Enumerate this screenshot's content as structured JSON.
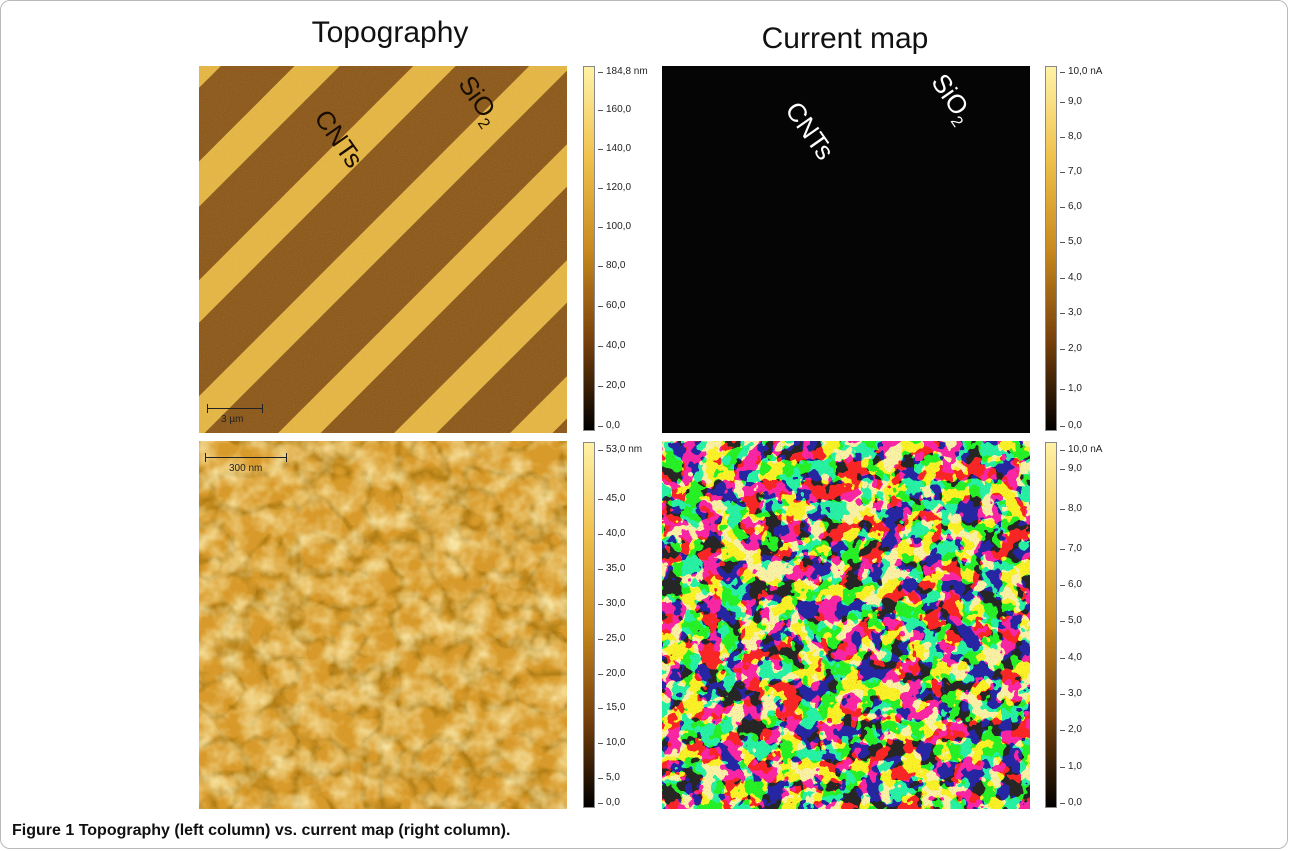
{
  "figure": {
    "titles": {
      "topography": "Topography",
      "current": "Current map"
    },
    "caption": {
      "label": "Figure 1",
      "text": "Topography (left column) vs. current map (right column)."
    },
    "panels": {
      "topo_top": {
        "labels": {
          "cnts": "CNTs",
          "sio": "SiO",
          "sub": "2"
        },
        "scalebar": "3 µm"
      },
      "curr_top": {
        "labels": {
          "cnts": "CNTs",
          "sio": "SiO",
          "sub": "2"
        }
      },
      "topo_bottom": {
        "scalebar": "300 nm"
      }
    },
    "colorbars": {
      "topo_top": [
        "184,8 nm",
        "160,0",
        "140,0",
        "120,0",
        "100,0",
        "80,0",
        "60,0",
        "40,0",
        "20,0",
        "0,0"
      ],
      "curr_top": [
        "10,0 nA",
        "9,0",
        "8,0",
        "7,0",
        "6,0",
        "5,0",
        "4,0",
        "3,0",
        "2,0",
        "1,0",
        "0,0"
      ],
      "topo_bottom": [
        "53,0 nm",
        "45,0",
        "40,0",
        "35,0",
        "30,0",
        "25,0",
        "20,0",
        "15,0",
        "10,0",
        "5,0",
        "0,0"
      ],
      "curr_bottom": [
        "10,0 nA",
        "9,0",
        "8,0",
        "7,0",
        "6,0",
        "5,0",
        "4,0",
        "3,0",
        "2,0",
        "1,0",
        "0,0"
      ]
    },
    "colors": {
      "band_light": "#e8b63c",
      "band_dark": "#8a5310",
      "current_gold": "#f2de64",
      "current_black": "#050505",
      "colorbar_top": "#fff2a6",
      "colorbar_mid": "#c98a1e",
      "colorbar_bottom": "#000000"
    }
  }
}
